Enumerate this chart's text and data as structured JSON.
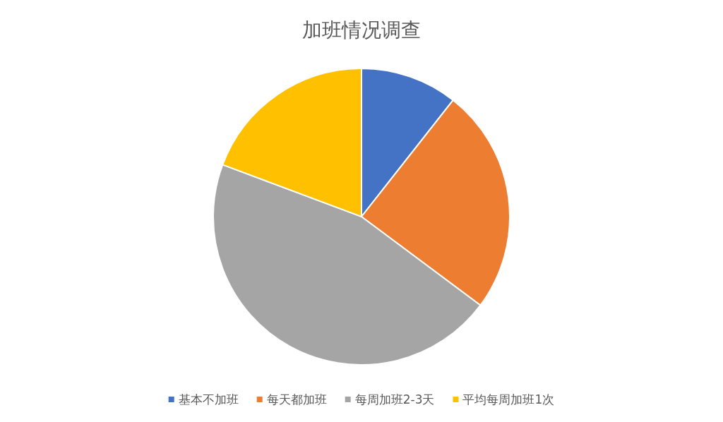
{
  "chart_data": {
    "type": "pie",
    "title": "加班情况调查",
    "categories": [
      "基本不加班",
      "每天都加班",
      "每周加班2-3天",
      "平均每周加班1次"
    ],
    "values": [
      10.6,
      24.6,
      45.5,
      19.3
    ],
    "colors": [
      "#4472c4",
      "#ed7d31",
      "#a5a5a5",
      "#ffc000"
    ],
    "legend": "bottom"
  }
}
